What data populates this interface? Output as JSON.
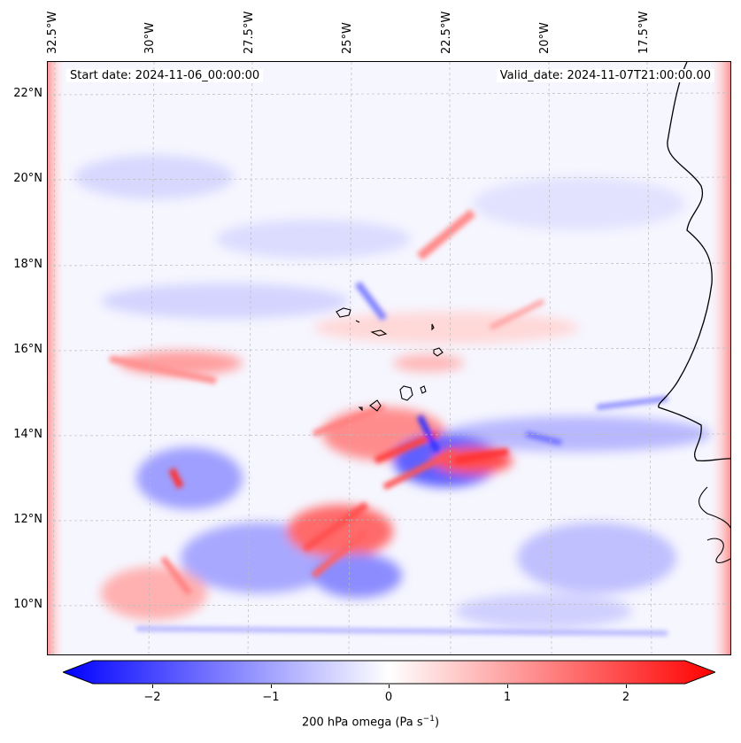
{
  "map": {
    "start_date_text": "Start date: 2024-11-06_00:00:00",
    "valid_date_text": "Valid_date: 2024-11-07T21:00:00.00",
    "lon_labels": [
      "32.5°W",
      "30°W",
      "27.5°W",
      "25°W",
      "22.5°W",
      "20°W",
      "17.5°W"
    ],
    "lat_labels": [
      "22°N",
      "20°N",
      "18°N",
      "16°N",
      "14°N",
      "12°N",
      "10°N"
    ],
    "field": "200 hPa omega",
    "colors": {
      "negative": "#0000ff",
      "neutral": "#ffffff",
      "positive": "#ff0000",
      "coast": "#000000",
      "grid": "#bbbbbb"
    }
  },
  "colorbar": {
    "ticks": [
      "−2",
      "−1",
      "0",
      "1",
      "2"
    ],
    "tick_values": [
      -2,
      -1,
      0,
      1,
      2
    ],
    "range": [
      -2.5,
      2.5
    ],
    "label_prefix": "200 hPa omega (Pa s",
    "label_exp": "−1",
    "label_suffix": ")"
  }
}
